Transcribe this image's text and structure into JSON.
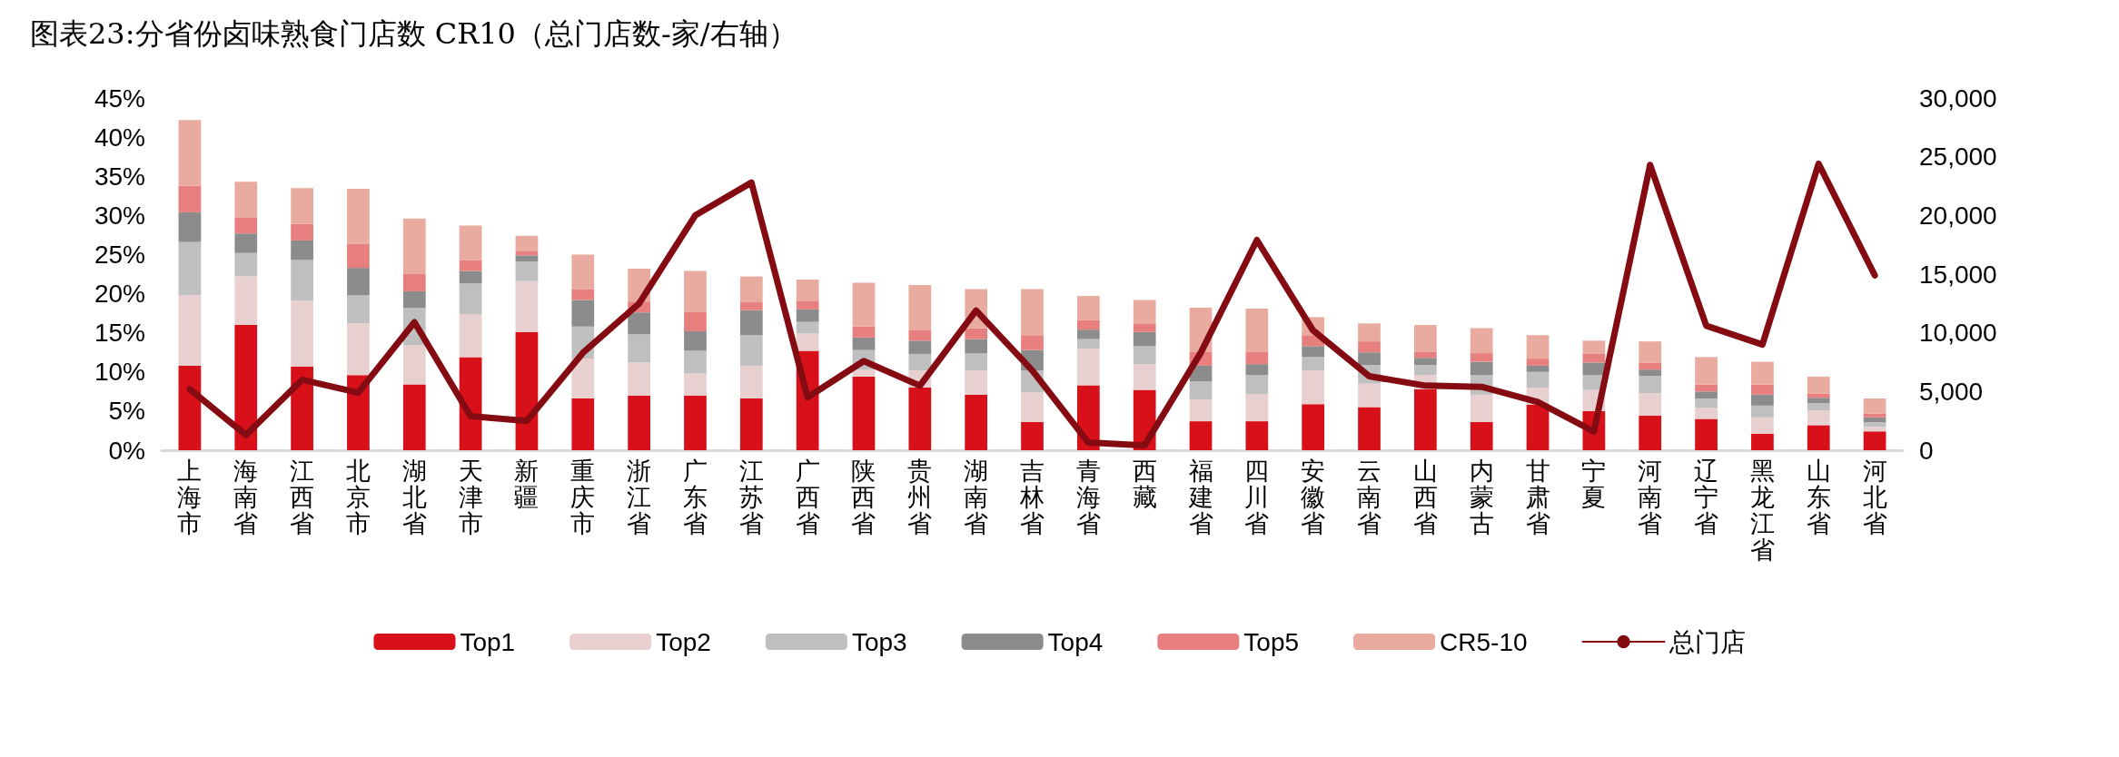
{
  "chart_data": {
    "type": "bar",
    "title": "图表23:分省份卤味熟食门店数 CR10（总门店数-家/右轴）",
    "categories": [
      "上海市",
      "海南省",
      "江西省",
      "北京市",
      "湖北省",
      "天津市",
      "新疆",
      "重庆市",
      "浙江省",
      "广东省",
      "江苏省",
      "广西省",
      "陕西省",
      "贵州省",
      "湖南省",
      "吉林省",
      "青海省",
      "西藏",
      "福建省",
      "四川省",
      "安徽省",
      "云南省",
      "山西省",
      "内蒙古",
      "甘肃省",
      "宁夏",
      "河南省",
      "辽宁省",
      "黑龙江省",
      "山东省",
      "河北省"
    ],
    "stacked": true,
    "legend": "bottom",
    "grid": false,
    "series": [
      {
        "name": "Top1",
        "color": "#d7101a",
        "values": [
          10.8,
          16.0,
          10.7,
          9.6,
          8.4,
          11.9,
          15.1,
          6.6,
          7.0,
          7.0,
          6.6,
          12.7,
          9.4,
          8.0,
          7.1,
          3.6,
          8.3,
          7.7,
          3.7,
          3.7,
          5.9,
          5.5,
          7.8,
          3.6,
          5.8,
          5.0,
          4.4,
          4.0,
          2.1,
          3.2,
          2.4
        ]
      },
      {
        "name": "Top2",
        "color": "#e8d0d0",
        "values": [
          9.0,
          6.2,
          8.4,
          6.6,
          5.0,
          5.5,
          6.5,
          5.1,
          4.2,
          2.8,
          4.2,
          2.2,
          0.9,
          2.2,
          3.1,
          3.8,
          4.7,
          3.3,
          2.8,
          3.5,
          4.3,
          3.0,
          1.8,
          3.5,
          2.2,
          2.7,
          2.9,
          1.4,
          2.1,
          1.9,
          0.6
        ]
      },
      {
        "name": "Top3",
        "color": "#bfbfbf",
        "values": [
          6.8,
          3.0,
          5.2,
          3.6,
          4.8,
          3.9,
          2.5,
          4.1,
          3.6,
          2.9,
          3.9,
          1.5,
          2.5,
          2.1,
          2.2,
          2.8,
          1.2,
          2.3,
          2.3,
          2.4,
          1.7,
          2.4,
          1.3,
          2.5,
          2.0,
          1.9,
          2.2,
          1.2,
          1.5,
          0.9,
          0.6
        ]
      },
      {
        "name": "Top4",
        "color": "#8c8c8c",
        "values": [
          3.8,
          2.5,
          2.5,
          3.5,
          2.1,
          1.6,
          0.8,
          3.4,
          2.8,
          2.5,
          3.2,
          1.6,
          1.6,
          1.7,
          1.8,
          2.6,
          1.2,
          1.8,
          2.0,
          1.4,
          1.4,
          1.6,
          0.9,
          1.7,
          0.8,
          1.6,
          0.8,
          0.9,
          1.4,
          0.7,
          0.6
        ]
      },
      {
        "name": "Top5",
        "color": "#e77f7f",
        "values": [
          3.4,
          2.0,
          2.1,
          3.1,
          2.2,
          1.4,
          0.5,
          1.4,
          1.4,
          2.5,
          1.0,
          1.1,
          1.4,
          1.4,
          1.4,
          1.9,
          1.2,
          1.1,
          1.8,
          1.6,
          1.4,
          1.4,
          0.8,
          1.1,
          0.9,
          1.1,
          0.9,
          0.9,
          1.3,
          0.5,
          0.5
        ]
      },
      {
        "name": "CR5-10",
        "color": "#e9aaa0",
        "values": [
          8.4,
          4.6,
          4.6,
          7.0,
          7.1,
          4.4,
          2.0,
          4.4,
          4.2,
          5.2,
          3.3,
          2.7,
          5.6,
          5.7,
          5.0,
          5.9,
          3.1,
          3.0,
          5.6,
          5.5,
          2.3,
          2.3,
          3.4,
          3.2,
          3.0,
          1.7,
          2.7,
          3.5,
          2.9,
          2.2,
          1.9
        ]
      },
      {
        "name": "总门店",
        "type": "line",
        "axis": "y2",
        "color": "#850b12",
        "values": [
          5200,
          1300,
          6000,
          4900,
          10900,
          2900,
          2500,
          8300,
          12500,
          20000,
          22800,
          4500,
          7600,
          5500,
          11900,
          6800,
          650,
          400,
          8300,
          17900,
          10200,
          6300,
          5500,
          5400,
          4100,
          1600,
          24300,
          10600,
          9000,
          24400,
          14900
        ]
      }
    ],
    "ylim": [
      0,
      45
    ],
    "yticks": [
      {
        "value": 0,
        "label": "0%"
      },
      {
        "value": 5,
        "label": "5%"
      },
      {
        "value": 10,
        "label": "10%"
      },
      {
        "value": 15,
        "label": "15%"
      },
      {
        "value": 20,
        "label": "20%"
      },
      {
        "value": 25,
        "label": "25%"
      },
      {
        "value": 30,
        "label": "30%"
      },
      {
        "value": 35,
        "label": "35%"
      },
      {
        "value": 40,
        "label": "40%"
      },
      {
        "value": 45,
        "label": "45%"
      }
    ],
    "y2lim": [
      0,
      30000
    ],
    "y2ticks": [
      0,
      {
        "value": 5000,
        "label": "5,000"
      },
      {
        "value": 10000,
        "label": "10,000"
      },
      {
        "value": 15000,
        "label": "15,000"
      },
      {
        "value": 20000,
        "label": "20,000"
      },
      {
        "value": 25000,
        "label": "25,000"
      },
      {
        "value": 30000,
        "label": "30,000"
      }
    ],
    "marker": "none"
  }
}
